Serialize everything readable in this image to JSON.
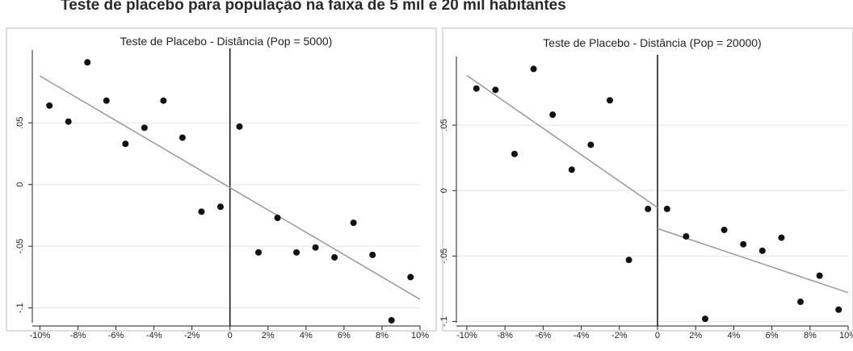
{
  "heading": "Teste de placebo para população na faixa de 5 mil e 20 mil habitantes",
  "chart_data": [
    {
      "type": "scatter",
      "title": "Teste de Placebo - Distância (Pop = 5000)",
      "x": [
        -9.5,
        -8.5,
        -7.5,
        -6.5,
        -5.5,
        -4.5,
        -3.5,
        -2.5,
        -1.5,
        -0.5,
        0.5,
        1.5,
        2.5,
        3.5,
        4.5,
        5.5,
        6.5,
        7.5,
        8.5,
        9.5
      ],
      "series": [
        {
          "color": "#111111",
          "values": [
            0.064,
            0.051,
            0.099,
            0.068,
            0.033,
            0.046,
            0.068,
            0.038,
            -0.022,
            -0.018,
            0.047,
            -0.055,
            -0.027,
            -0.055,
            -0.051,
            -0.059,
            -0.031,
            -0.057,
            -0.11,
            -0.075
          ]
        }
      ],
      "fit_lines": [
        {
          "color": "#999999",
          "x": [
            -10,
            10
          ],
          "y": [
            0.088,
            -0.093
          ]
        }
      ],
      "vline": 0,
      "xlim": [
        -10.4,
        10
      ],
      "ylim": [
        -0.112,
        0.109
      ],
      "xticks": [
        {
          "value": -10,
          "label": "-10%"
        },
        {
          "value": -8,
          "label": "-8%"
        },
        {
          "value": -6,
          "label": "-6%"
        },
        {
          "value": -4,
          "label": "-4%"
        },
        {
          "value": -2,
          "label": "-2%"
        },
        0,
        {
          "value": 2,
          "label": "2%"
        },
        {
          "value": 4,
          "label": "4%"
        },
        {
          "value": 6,
          "label": "6%"
        },
        {
          "value": 8,
          "label": "8%"
        },
        {
          "value": 10,
          "label": "10%"
        }
      ],
      "yticks": [
        {
          "value": 0.05,
          "label": ".05"
        },
        0,
        {
          "value": -0.05,
          "label": "-.05"
        },
        {
          "value": -0.1,
          "label": "-.1"
        }
      ],
      "grid": true
    },
    {
      "type": "scatter",
      "title": "Teste de Placebo - Distância (Pop = 20000)",
      "x": [
        -9.5,
        -8.5,
        -7.5,
        -6.5,
        -5.5,
        -4.5,
        -3.5,
        -2.5,
        -1.5,
        -0.5,
        0.5,
        1.5,
        2.5,
        3.5,
        4.5,
        5.5,
        6.5,
        7.5,
        8.5,
        9.5
      ],
      "series": [
        {
          "color": "#111111",
          "values": [
            0.078,
            0.077,
            0.028,
            0.093,
            0.058,
            0.016,
            0.035,
            0.069,
            -0.053,
            -0.014,
            -0.014,
            -0.035,
            -0.098,
            -0.03,
            -0.041,
            -0.046,
            -0.036,
            -0.085,
            -0.065,
            -0.091
          ]
        }
      ],
      "fit_lines": [
        {
          "color": "#999999",
          "x": [
            -10,
            0
          ],
          "y": [
            0.088,
            -0.013
          ]
        },
        {
          "color": "#999999",
          "x": [
            0,
            10
          ],
          "y": [
            -0.029,
            -0.078
          ]
        }
      ],
      "vline": 0,
      "xlim": [
        -10.55,
        10
      ],
      "ylim": [
        -0.101,
        0.1025
      ],
      "xticks": [
        {
          "value": -10,
          "label": "-10%"
        },
        {
          "value": -8,
          "label": "-8%"
        },
        {
          "value": -6,
          "label": "-6%"
        },
        {
          "value": -4,
          "label": "-4%"
        },
        {
          "value": -2,
          "label": "-2%"
        },
        0,
        {
          "value": 2,
          "label": "2%"
        },
        {
          "value": 4,
          "label": "4%"
        },
        {
          "value": 6,
          "label": "6%"
        },
        {
          "value": 8,
          "label": "8%"
        },
        {
          "value": 10,
          "label": "10%"
        }
      ],
      "yticks": [
        {
          "value": 0.05,
          "label": ".05"
        },
        0,
        {
          "value": -0.05,
          "label": "-.05"
        },
        {
          "value": -0.1,
          "label": "-.1"
        }
      ],
      "grid": true
    }
  ]
}
